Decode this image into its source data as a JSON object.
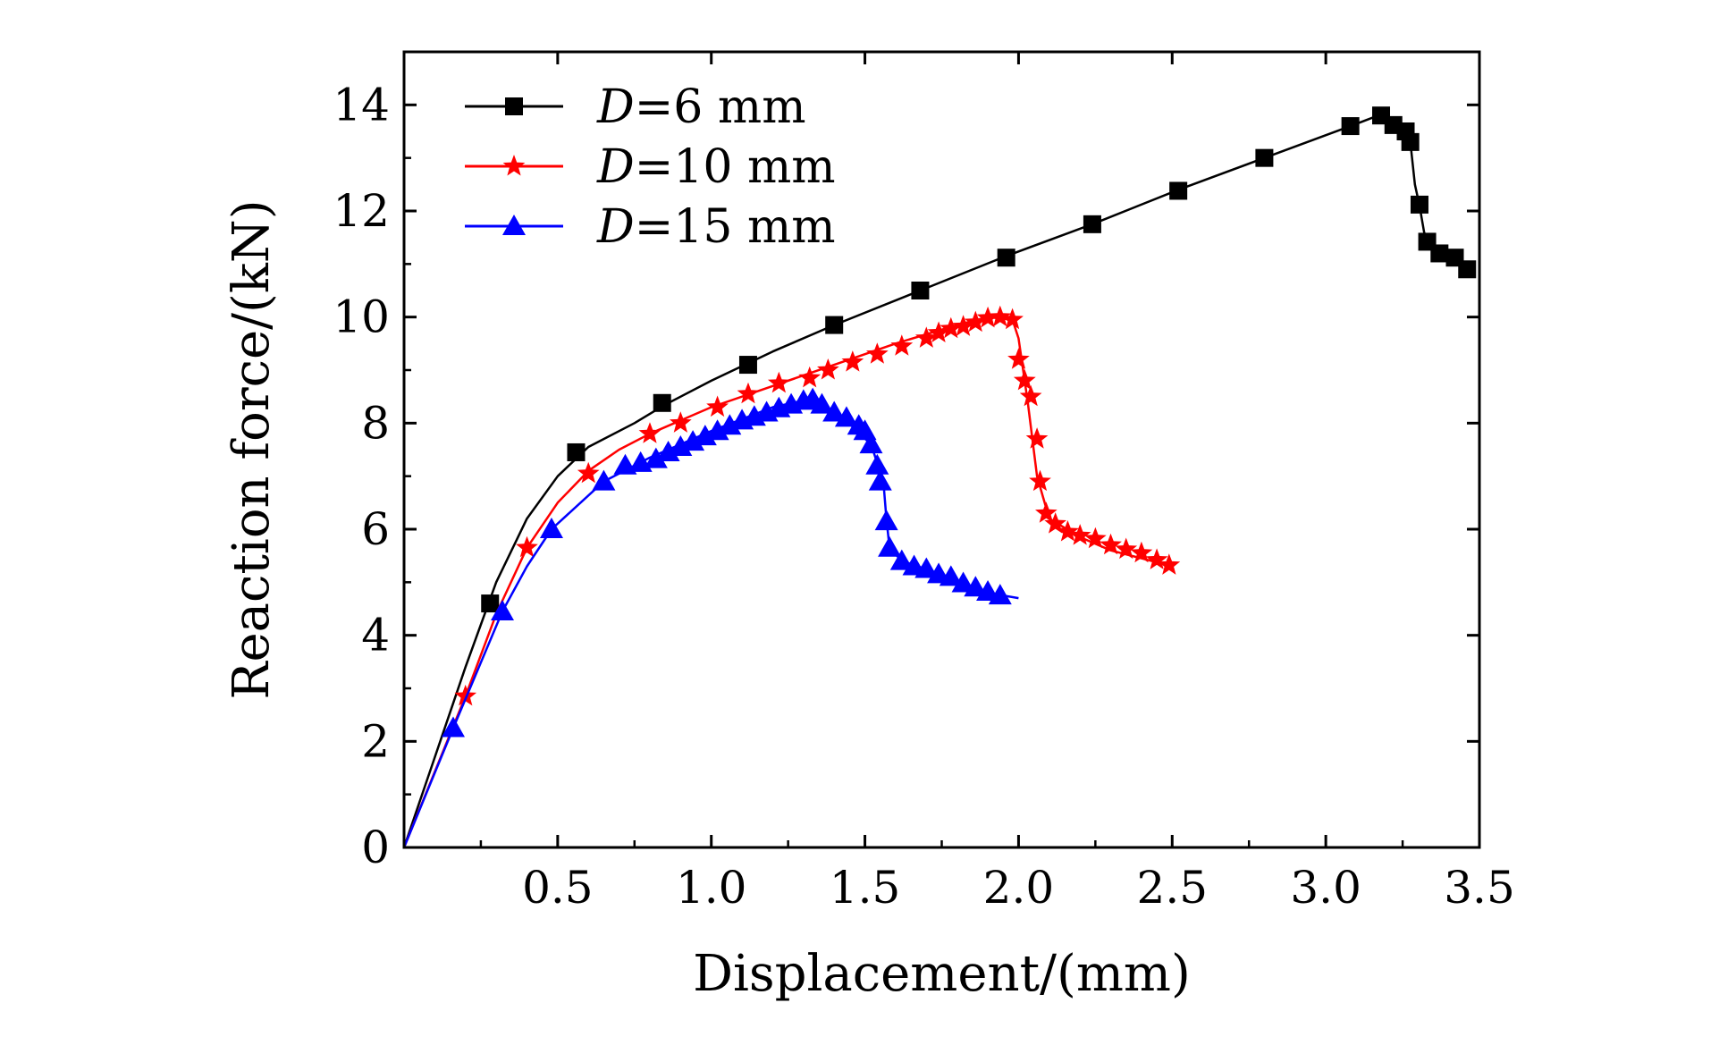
{
  "chart_data": {
    "type": "line",
    "xlabel": "Displacement/(mm)",
    "ylabel": "Reaction force/(kN)",
    "xlim": [
      0,
      3.5
    ],
    "ylim": [
      0,
      15
    ],
    "xticks": [
      0.5,
      1.0,
      1.5,
      2.0,
      2.5,
      3.0,
      3.5
    ],
    "xtick_labels": [
      "0.5",
      "1.0",
      "1.5",
      "2.0",
      "2.5",
      "3.0",
      "3.5"
    ],
    "yticks": [
      0,
      2,
      4,
      6,
      8,
      10,
      12,
      14
    ],
    "ytick_labels": [
      "0",
      "2",
      "4",
      "6",
      "8",
      "10",
      "12",
      "14"
    ],
    "grid": false,
    "legend_position": "top-left",
    "series": [
      {
        "name": "D=6 mm",
        "legend_var": "D",
        "legend_rest": "=6 mm",
        "color": "#000000",
        "marker": "square",
        "line": [
          [
            0,
            0
          ],
          [
            0.1,
            1.7
          ],
          [
            0.2,
            3.4
          ],
          [
            0.3,
            5.0
          ],
          [
            0.4,
            6.2
          ],
          [
            0.5,
            7.0
          ],
          [
            0.6,
            7.55
          ],
          [
            0.75,
            8.0
          ],
          [
            0.85,
            8.35
          ],
          [
            1.0,
            8.8
          ],
          [
            1.2,
            9.35
          ],
          [
            1.4,
            9.85
          ],
          [
            1.68,
            10.5
          ],
          [
            1.96,
            11.15
          ],
          [
            2.24,
            11.75
          ],
          [
            2.52,
            12.4
          ],
          [
            2.8,
            13.0
          ],
          [
            3.08,
            13.6
          ],
          [
            3.18,
            13.82
          ],
          [
            3.22,
            13.65
          ],
          [
            3.26,
            13.55
          ],
          [
            3.275,
            13.3
          ],
          [
            3.29,
            12.5
          ],
          [
            3.305,
            12.1
          ],
          [
            3.32,
            11.6
          ],
          [
            3.335,
            11.4
          ],
          [
            3.37,
            11.2
          ],
          [
            3.42,
            11.1
          ],
          [
            3.46,
            10.9
          ],
          [
            3.48,
            10.85
          ]
        ],
        "markers": [
          [
            0.28,
            4.6
          ],
          [
            0.56,
            7.45
          ],
          [
            0.84,
            8.38
          ],
          [
            1.12,
            9.1
          ],
          [
            1.4,
            9.85
          ],
          [
            1.68,
            10.5
          ],
          [
            1.96,
            11.12
          ],
          [
            2.24,
            11.75
          ],
          [
            2.52,
            12.38
          ],
          [
            2.8,
            13.0
          ],
          [
            3.08,
            13.6
          ],
          [
            3.18,
            13.8
          ],
          [
            3.22,
            13.62
          ],
          [
            3.26,
            13.5
          ],
          [
            3.275,
            13.3
          ],
          [
            3.305,
            12.12
          ],
          [
            3.33,
            11.42
          ],
          [
            3.37,
            11.2
          ],
          [
            3.42,
            11.12
          ],
          [
            3.46,
            10.9
          ]
        ]
      },
      {
        "name": "D=10 mm",
        "legend_var": "D",
        "legend_rest": "=10 mm",
        "color": "#ff0000",
        "marker": "star",
        "line": [
          [
            0,
            0
          ],
          [
            0.2,
            2.85
          ],
          [
            0.3,
            4.4
          ],
          [
            0.4,
            5.65
          ],
          [
            0.5,
            6.5
          ],
          [
            0.6,
            7.1
          ],
          [
            0.7,
            7.5
          ],
          [
            0.8,
            7.8
          ],
          [
            1.0,
            8.3
          ],
          [
            1.2,
            8.7
          ],
          [
            1.4,
            9.1
          ],
          [
            1.6,
            9.5
          ],
          [
            1.8,
            9.85
          ],
          [
            1.9,
            10.0
          ],
          [
            1.98,
            9.95
          ],
          [
            2.0,
            9.6
          ],
          [
            2.03,
            8.4
          ],
          [
            2.06,
            7.0
          ],
          [
            2.08,
            6.6
          ],
          [
            2.1,
            6.2
          ],
          [
            2.2,
            5.85
          ],
          [
            2.3,
            5.6
          ],
          [
            2.4,
            5.45
          ],
          [
            2.5,
            5.3
          ]
        ],
        "markers": [
          [
            0.2,
            2.85
          ],
          [
            0.4,
            5.65
          ],
          [
            0.6,
            7.05
          ],
          [
            0.8,
            7.8
          ],
          [
            0.9,
            8.0
          ],
          [
            1.02,
            8.3
          ],
          [
            1.12,
            8.55
          ],
          [
            1.22,
            8.75
          ],
          [
            1.32,
            8.85
          ],
          [
            1.38,
            9.0
          ],
          [
            1.46,
            9.15
          ],
          [
            1.54,
            9.3
          ],
          [
            1.62,
            9.45
          ],
          [
            1.7,
            9.6
          ],
          [
            1.74,
            9.7
          ],
          [
            1.78,
            9.78
          ],
          [
            1.82,
            9.82
          ],
          [
            1.86,
            9.9
          ],
          [
            1.9,
            9.98
          ],
          [
            1.94,
            10.0
          ],
          [
            1.98,
            9.95
          ],
          [
            2.0,
            9.2
          ],
          [
            2.02,
            8.8
          ],
          [
            2.04,
            8.5
          ],
          [
            2.06,
            7.7
          ],
          [
            2.07,
            6.9
          ],
          [
            2.09,
            6.3
          ],
          [
            2.12,
            6.1
          ],
          [
            2.16,
            5.95
          ],
          [
            2.2,
            5.88
          ],
          [
            2.25,
            5.82
          ],
          [
            2.3,
            5.7
          ],
          [
            2.35,
            5.62
          ],
          [
            2.4,
            5.55
          ],
          [
            2.45,
            5.42
          ],
          [
            2.49,
            5.32
          ]
        ]
      },
      {
        "name": "D=15 mm",
        "legend_var": "D",
        "legend_rest": "=15 mm",
        "color": "#0000ff",
        "marker": "triangle",
        "line": [
          [
            0,
            0
          ],
          [
            0.16,
            2.25
          ],
          [
            0.32,
            4.45
          ],
          [
            0.4,
            5.3
          ],
          [
            0.48,
            6.0
          ],
          [
            0.65,
            6.9
          ],
          [
            0.8,
            7.35
          ],
          [
            1.0,
            7.85
          ],
          [
            1.2,
            8.3
          ],
          [
            1.32,
            8.45
          ],
          [
            1.42,
            8.15
          ],
          [
            1.52,
            7.6
          ],
          [
            1.56,
            6.9
          ],
          [
            1.57,
            6.2
          ],
          [
            1.58,
            5.65
          ],
          [
            1.62,
            5.4
          ],
          [
            1.75,
            5.15
          ],
          [
            1.9,
            4.8
          ],
          [
            2.0,
            4.7
          ]
        ],
        "markers": [
          [
            0.16,
            2.25
          ],
          [
            0.32,
            4.45
          ],
          [
            0.48,
            6.0
          ],
          [
            0.65,
            6.9
          ],
          [
            0.72,
            7.2
          ],
          [
            0.77,
            7.25
          ],
          [
            0.82,
            7.32
          ],
          [
            0.86,
            7.45
          ],
          [
            0.9,
            7.55
          ],
          [
            0.94,
            7.65
          ],
          [
            0.98,
            7.75
          ],
          [
            1.02,
            7.85
          ],
          [
            1.06,
            7.95
          ],
          [
            1.1,
            8.05
          ],
          [
            1.14,
            8.12
          ],
          [
            1.18,
            8.2
          ],
          [
            1.22,
            8.28
          ],
          [
            1.26,
            8.35
          ],
          [
            1.3,
            8.42
          ],
          [
            1.33,
            8.45
          ],
          [
            1.36,
            8.35
          ],
          [
            1.4,
            8.2
          ],
          [
            1.44,
            8.1
          ],
          [
            1.48,
            7.95
          ],
          [
            1.5,
            7.85
          ],
          [
            1.52,
            7.6
          ],
          [
            1.54,
            7.2
          ],
          [
            1.55,
            6.9
          ],
          [
            1.57,
            6.15
          ],
          [
            1.58,
            5.65
          ],
          [
            1.62,
            5.4
          ],
          [
            1.66,
            5.3
          ],
          [
            1.7,
            5.25
          ],
          [
            1.74,
            5.15
          ],
          [
            1.78,
            5.1
          ],
          [
            1.82,
            4.98
          ],
          [
            1.86,
            4.9
          ],
          [
            1.9,
            4.82
          ],
          [
            1.94,
            4.75
          ]
        ]
      }
    ]
  }
}
